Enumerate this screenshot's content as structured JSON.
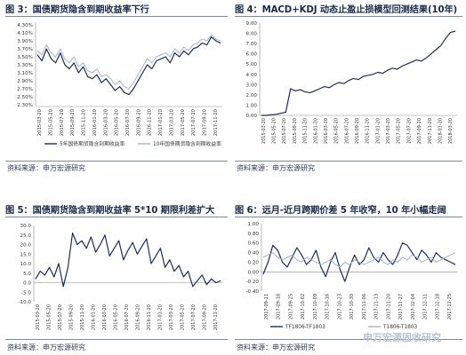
{
  "charts": [
    {
      "caption": "图 3：国债期货隐含到期收益率下行",
      "source": "资料来源：申万宏源研究",
      "chart_data": {
        "type": "line",
        "ylim": [
          2.25,
          4.35
        ],
        "yticks": [
          "2.30%",
          "2.50%",
          "2.70%",
          "2.90%",
          "3.10%",
          "3.30%",
          "3.50%",
          "3.70%",
          "3.90%",
          "4.10%",
          "4.30%"
        ],
        "ytick_values": [
          2.3,
          2.5,
          2.7,
          2.9,
          3.1,
          3.3,
          3.5,
          3.7,
          3.9,
          4.1,
          4.3
        ],
        "xticks": [
          "2015-03-20",
          "2015-05-20",
          "2015-07-20",
          "2015-09-20",
          "2015-11-20",
          "2016-01-20",
          "2016-03-20",
          "2016-05-20",
          "2016-07-20",
          "2016-09-20",
          "2016-11-20",
          "2017-01-20",
          "2017-03-20",
          "2017-05-20",
          "2017-07-20",
          "2017-09-20",
          "2017-11-20"
        ],
        "legend_position": "bottom",
        "series": [
          {
            "name": "5年国债期货隐含到期收益率",
            "color": "#1f2d5a",
            "values": [
              3.55,
              3.4,
              3.7,
              3.45,
              3.35,
              3.6,
              3.3,
              3.2,
              3.35,
              3.1,
              3.25,
              3.0,
              2.95,
              3.05,
              2.85,
              2.95,
              2.8,
              2.65,
              2.75,
              2.6,
              2.55,
              2.7,
              2.9,
              3.1,
              3.3,
              3.2,
              3.4,
              3.45,
              3.5,
              3.35,
              3.6,
              3.5,
              3.65,
              3.55,
              3.7,
              3.75,
              3.85,
              3.8,
              4.0,
              3.9,
              3.85
            ]
          },
          {
            "name": "10年国债期货隐含到期收益率",
            "color": "#9fb3cc",
            "values": [
              3.65,
              3.55,
              3.8,
              3.6,
              3.5,
              3.7,
              3.45,
              3.35,
              3.5,
              3.25,
              3.35,
              3.15,
              3.1,
              3.2,
              3.0,
              3.05,
              2.95,
              2.8,
              2.9,
              2.75,
              2.7,
              2.85,
              3.05,
              3.25,
              3.45,
              3.35,
              3.5,
              3.55,
              3.6,
              3.5,
              3.7,
              3.6,
              3.75,
              3.65,
              3.8,
              3.85,
              3.95,
              3.9,
              4.05,
              3.95,
              3.9
            ]
          }
        ]
      }
    },
    {
      "caption": "图 4：MACD+KDJ 动态止盈止损模型回测结果(10年)",
      "source": "资料来源：申万宏源研究",
      "chart_data": {
        "type": "line",
        "ylim": [
          0,
          9
        ],
        "yticks": [
          "0.00",
          "1.00",
          "2.00",
          "3.00",
          "4.00",
          "5.00",
          "6.00",
          "7.00",
          "8.00",
          "9.00"
        ],
        "ytick_values": [
          0,
          1,
          2,
          3,
          4,
          5,
          6,
          7,
          8,
          9
        ],
        "xticks": [
          "2015-03-20",
          "2015-05-20",
          "2015-07-20",
          "2015-09-20",
          "2015-11-20",
          "2016-01-20",
          "2016-03-20",
          "2016-05-20",
          "2016-07-20",
          "2016-09-20",
          "2016-11-20",
          "2017-01-20",
          "2017-03-20",
          "2017-05-20",
          "2017-07-20",
          "2017-09-20",
          "2017-11-20",
          "2018-01-20",
          "2018-03-20"
        ],
        "series": [
          {
            "name": "",
            "color": "#1f2d5a",
            "values": [
              0.0,
              0.0,
              0.05,
              0.1,
              0.2,
              0.3,
              2.6,
              2.4,
              2.5,
              2.3,
              2.2,
              2.4,
              2.6,
              2.8,
              2.7,
              3.0,
              3.2,
              3.1,
              3.4,
              3.6,
              3.5,
              3.8,
              3.9,
              4.0,
              4.2,
              4.1,
              4.4,
              4.6,
              4.5,
              4.8,
              5.0,
              5.2,
              5.4,
              5.3,
              5.6,
              6.0,
              6.4,
              6.8,
              7.5,
              8.1,
              8.2
            ]
          }
        ]
      }
    },
    {
      "caption": "图 5：国债期货隐含到期收益率 5*10 期限利差扩大",
      "source": "资料来源：申万宏源研究",
      "chart_data": {
        "type": "line",
        "ylim": [
          -10,
          30
        ],
        "yticks": [
          "-10.0",
          "-5.0",
          "0.0",
          "5.0",
          "10.0",
          "15.0",
          "20.0",
          "25.0",
          "30.0"
        ],
        "ytick_values": [
          -10,
          -5,
          0,
          5,
          10,
          15,
          20,
          25,
          30
        ],
        "xticks": [
          "2015-03-20",
          "2015-05-20",
          "2015-07-20",
          "2015-09-20",
          "2015-11-20",
          "2016-01-20",
          "2016-03-20",
          "2016-05-20",
          "2016-07-20",
          "2016-09-20",
          "2016-11-20",
          "2017-01-20",
          "2017-03-20",
          "2017-05-20",
          "2017-07-20",
          "2017-09-20",
          "2017-11-20"
        ],
        "series": [
          {
            "name": "",
            "color": "#1f2d5a",
            "values": [
              2,
              6,
              4,
              8,
              3,
              10,
              -2,
              8,
              26,
              20,
              22,
              18,
              24,
              16,
              20,
              25,
              14,
              18,
              22,
              12,
              17,
              21,
              15,
              19,
              23,
              10,
              14,
              18,
              8,
              12,
              6,
              9,
              3,
              6,
              -2,
              1,
              4,
              -1,
              2,
              0,
              1
            ]
          }
        ]
      }
    },
    {
      "caption": "图 6：远月-近月跨期价差 5 年收窄，10 年小幅走阔",
      "source": "资料来源：申万宏源研究",
      "chart_data": {
        "type": "line",
        "ylim": [
          -0.4,
          1.0
        ],
        "yticks": [
          "-0.40",
          "-0.20",
          "0.00",
          "0.20",
          "0.40",
          "0.60",
          "0.80",
          "1.00"
        ],
        "ytick_values": [
          -0.4,
          -0.2,
          0,
          0.2,
          0.4,
          0.6,
          0.8,
          1.0
        ],
        "xticks": [
          "2017-09-11",
          "2017-09-18",
          "2017-09-25",
          "2017-10-02",
          "2017-10-09",
          "2017-10-16",
          "2017-10-23",
          "2017-10-30",
          "2017-11-06",
          "2017-11-13",
          "2017-11-20",
          "2017-11-27",
          "2017-12-04",
          "2017-12-11",
          "2017-12-18",
          "2017-12-25"
        ],
        "legend_position": "bottom",
        "series": [
          {
            "name": "TF1806-TF1803",
            "color": "#1f2d5a",
            "values": [
              -0.05,
              0.2,
              0.55,
              0.45,
              0.2,
              0.1,
              0.3,
              0.5,
              0.35,
              0.15,
              0.25,
              0.45,
              0.1,
              -0.1,
              0.2,
              0.4,
              0.05,
              -0.2,
              0.1,
              0.35,
              0.15,
              0.25,
              0.5,
              0.3,
              0.2,
              0.4,
              0.25,
              0.15,
              0.35,
              0.6,
              0.55,
              0.4,
              0.25,
              0.45,
              0.35,
              0.2,
              0.4,
              0.3,
              0.25,
              0.2,
              0.15
            ]
          },
          {
            "name": "T1806-T1803",
            "color": "#9fb3cc",
            "values": [
              0.3,
              0.35,
              0.4,
              0.3,
              0.25,
              0.3,
              0.35,
              0.25,
              0.2,
              0.3,
              0.25,
              0.2,
              0.15,
              0.2,
              0.25,
              0.15,
              0.1,
              0.2,
              0.15,
              0.25,
              0.2,
              0.15,
              0.2,
              0.25,
              0.3,
              0.2,
              0.15,
              0.25,
              0.2,
              0.3,
              0.25,
              0.35,
              0.3,
              0.2,
              0.25,
              0.3,
              0.2,
              0.25,
              0.3,
              0.35,
              0.4
            ]
          }
        ]
      }
    }
  ],
  "watermark": "申万宏源固收研究"
}
